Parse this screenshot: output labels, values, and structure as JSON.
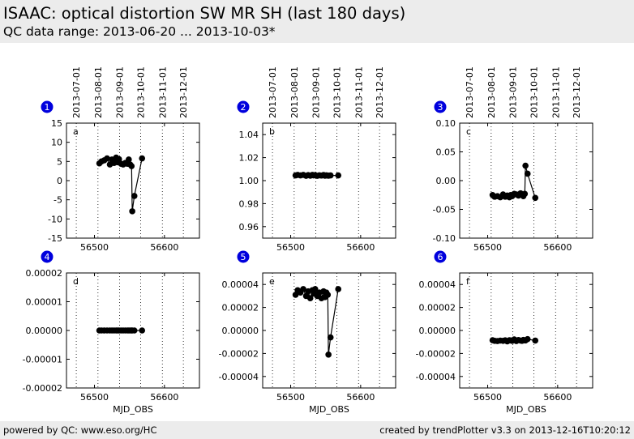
{
  "header": {
    "title": "ISAAC: optical distortion SW MR SH (last 180 days)",
    "subtitle": "QC data range: 2013-06-20 ... 2013-10-03*"
  },
  "footer": {
    "left": "powered by QC: www.eso.org/HC",
    "right": "created by trendPlotter v3.3 on 2013-12-16T10:20:12"
  },
  "colors": {
    "marker": "#000000",
    "badge": "#0000dd",
    "header_bg": "#ececec"
  },
  "date_axis": {
    "labels": [
      "2013-07-01",
      "2013-08-01",
      "2013-09-01",
      "2013-10-01",
      "2013-11-01",
      "2013-12-01"
    ],
    "mjd": [
      56474,
      56505,
      56536,
      56566,
      56597,
      56627
    ]
  },
  "chart_data": [
    {
      "type": "line",
      "badge": "1",
      "panel_label": "a",
      "xlim": [
        56460,
        56650
      ],
      "ylim": [
        -15,
        15
      ],
      "xticks": [
        "56500",
        "56600"
      ],
      "xtick_values": [
        56500,
        56600
      ],
      "yticks": [
        "15",
        "10",
        "5",
        "0",
        "-5",
        "-10",
        "-15"
      ],
      "ytick_values": [
        15,
        10,
        5,
        0,
        -5,
        -10,
        -15
      ],
      "xlabel": "",
      "x": [
        56507,
        56510,
        56514,
        56518,
        56522,
        56525,
        56528,
        56531,
        56533,
        56535,
        56538,
        56541,
        56544,
        56547,
        56549,
        56551,
        56553,
        56554,
        56557,
        56568
      ],
      "y": [
        4.5,
        5.0,
        5.3,
        5.8,
        4.2,
        5.5,
        4.6,
        6.0,
        4.8,
        5.6,
        4.4,
        4.2,
        4.6,
        4.4,
        5.5,
        4.2,
        3.8,
        -8.0,
        -4.0,
        5.8
      ]
    },
    {
      "type": "line",
      "badge": "2",
      "panel_label": "b",
      "xlim": [
        56460,
        56650
      ],
      "ylim": [
        0.95,
        1.05
      ],
      "xticks": [
        "56500",
        "56600"
      ],
      "xtick_values": [
        56500,
        56600
      ],
      "yticks": [
        "1.04",
        "1.02",
        "1.00",
        "0.98",
        "0.96"
      ],
      "ytick_values": [
        1.04,
        1.02,
        1.0,
        0.98,
        0.96
      ],
      "xlabel": "",
      "x": [
        56507,
        56510,
        56514,
        56518,
        56522,
        56525,
        56528,
        56531,
        56533,
        56535,
        56538,
        56541,
        56544,
        56547,
        56549,
        56551,
        56553,
        56554,
        56557,
        56568
      ],
      "y": [
        1.0045,
        1.005,
        1.0045,
        1.005,
        1.0042,
        1.0048,
        1.0043,
        1.005,
        1.0045,
        1.0048,
        1.0042,
        1.0046,
        1.0044,
        1.0049,
        1.0043,
        1.0046,
        1.0044,
        1.0043,
        1.0045,
        1.0045
      ]
    },
    {
      "type": "line",
      "badge": "3",
      "panel_label": "c",
      "xlim": [
        56460,
        56650
      ],
      "ylim": [
        -0.1,
        0.1
      ],
      "xticks": [
        "56500",
        "56600"
      ],
      "xtick_values": [
        56500,
        56600
      ],
      "yticks": [
        "0.10",
        "0.05",
        "0.00",
        "-0.05",
        "-0.10"
      ],
      "ytick_values": [
        0.1,
        0.05,
        0.0,
        -0.05,
        -0.1
      ],
      "xlabel": "",
      "x": [
        56507,
        56510,
        56514,
        56518,
        56522,
        56525,
        56528,
        56531,
        56533,
        56535,
        56538,
        56541,
        56544,
        56547,
        56549,
        56551,
        56553,
        56554,
        56557,
        56568
      ],
      "y": [
        -0.025,
        -0.028,
        -0.027,
        -0.029,
        -0.024,
        -0.028,
        -0.026,
        -0.029,
        -0.025,
        -0.027,
        -0.023,
        -0.024,
        -0.026,
        -0.022,
        -0.024,
        -0.027,
        -0.023,
        0.026,
        0.012,
        -0.03
      ]
    },
    {
      "type": "line",
      "badge": "4",
      "panel_label": "d",
      "xlim": [
        56460,
        56650
      ],
      "ylim": [
        -2e-05,
        2e-05
      ],
      "xticks": [
        "56500",
        "56600"
      ],
      "xtick_values": [
        56500,
        56600
      ],
      "yticks": [
        "0.00002",
        "0.00001",
        "0.00000",
        "-0.00001",
        "-0.00002"
      ],
      "ytick_values": [
        2e-05,
        1e-05,
        0,
        -1e-05,
        -2e-05
      ],
      "xlabel": "MJD_OBS",
      "x": [
        56507,
        56510,
        56514,
        56518,
        56522,
        56525,
        56528,
        56531,
        56533,
        56535,
        56538,
        56541,
        56544,
        56547,
        56549,
        56551,
        56553,
        56554,
        56557,
        56568
      ],
      "y": [
        0,
        0,
        0,
        0,
        0,
        0,
        0,
        0,
        0,
        0,
        0,
        0,
        0,
        0,
        0,
        0,
        0,
        0,
        0,
        0
      ]
    },
    {
      "type": "line",
      "badge": "5",
      "panel_label": "e",
      "xlim": [
        56460,
        56650
      ],
      "ylim": [
        -5e-05,
        5e-05
      ],
      "xticks": [
        "56500",
        "56600"
      ],
      "xtick_values": [
        56500,
        56600
      ],
      "yticks": [
        "0.00004",
        "0.00002",
        "0.00000",
        "-0.00002",
        "-0.00004"
      ],
      "ytick_values": [
        4e-05,
        2e-05,
        0,
        -2e-05,
        -4e-05
      ],
      "xlabel": "MJD_OBS",
      "x": [
        56507,
        56510,
        56514,
        56518,
        56522,
        56525,
        56528,
        56531,
        56533,
        56535,
        56538,
        56541,
        56544,
        56547,
        56549,
        56551,
        56553,
        56554,
        56557,
        56568
      ],
      "y": [
        3.1e-05,
        3.5e-05,
        3.3e-05,
        3.6e-05,
        3e-05,
        3.4e-05,
        2.8e-05,
        3.5e-05,
        3.2e-05,
        3.6e-05,
        3e-05,
        3.3e-05,
        2.8e-05,
        3.4e-05,
        2.9e-05,
        3.3e-05,
        3.1e-05,
        -2.1e-05,
        -6e-06,
        3.6e-05
      ]
    },
    {
      "type": "line",
      "badge": "6",
      "panel_label": "f",
      "xlim": [
        56460,
        56650
      ],
      "ylim": [
        -5e-05,
        5e-05
      ],
      "xticks": [
        "56500",
        "56600"
      ],
      "xtick_values": [
        56500,
        56600
      ],
      "yticks": [
        "0.00004",
        "0.00002",
        "0.00000",
        "-0.00002",
        "-0.00004"
      ],
      "ytick_values": [
        4e-05,
        2e-05,
        0,
        -2e-05,
        -4e-05
      ],
      "xlabel": "MJD_OBS",
      "x": [
        56507,
        56510,
        56514,
        56518,
        56522,
        56525,
        56528,
        56531,
        56533,
        56535,
        56538,
        56541,
        56544,
        56547,
        56549,
        56551,
        56553,
        56554,
        56557,
        56568
      ],
      "y": [
        -8.5e-06,
        -9e-06,
        -9.2e-06,
        -8.8e-06,
        -9e-06,
        -8.6e-06,
        -9.5e-06,
        -8.5e-06,
        -8.7e-06,
        -9e-06,
        -7.8e-06,
        -9.2e-06,
        -8.3e-06,
        -8.8e-06,
        -9e-06,
        -8.2e-06,
        -8.6e-06,
        -8.7e-06,
        -7.5e-06,
        -8.8e-06
      ]
    }
  ]
}
